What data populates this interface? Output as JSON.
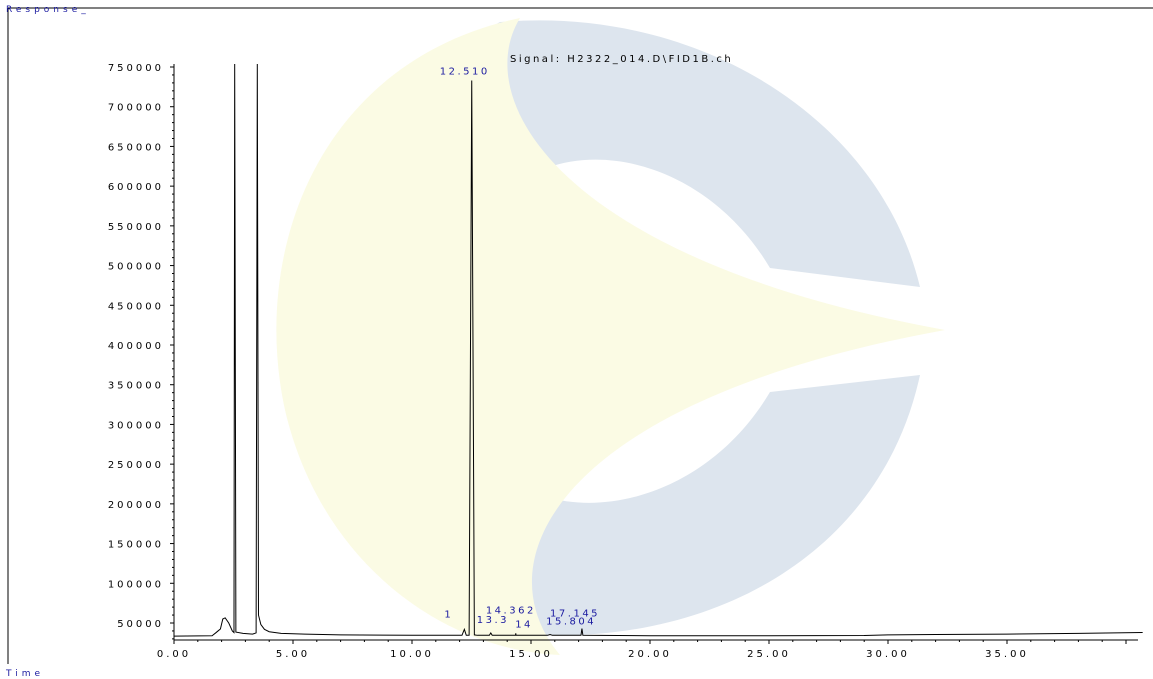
{
  "chart_data": {
    "type": "line",
    "signal_title": "Signal: H2322_014.D\\FID1B.ch",
    "ylabel": "Response_",
    "xlabel": "Time",
    "xlim": [
      0,
      40.7
    ],
    "ylim": [
      30000,
      760000
    ],
    "x_ticks": [
      0,
      5,
      10,
      15,
      20,
      25,
      30,
      35
    ],
    "x_tick_labels": [
      "0.00",
      "5.00",
      "10.00",
      "15.00",
      "20.00",
      "25.00",
      "30.00",
      "35.00"
    ],
    "y_ticks": [
      50000,
      100000,
      150000,
      200000,
      250000,
      300000,
      350000,
      400000,
      450000,
      500000,
      550000,
      600000,
      650000,
      700000,
      750000
    ],
    "y_tick_labels": [
      "50000",
      "100000",
      "150000",
      "200000",
      "250000",
      "300000",
      "350000",
      "400000",
      "450000",
      "500000",
      "550000",
      "600000",
      "650000",
      "700000",
      "750000"
    ],
    "grid": false,
    "colors": {
      "trace": "#000000",
      "labels": "#1a1aa0",
      "axis": "#000000",
      "watermark_blue": "#dde5ee",
      "watermark_yellow": "#fbfbe4"
    },
    "series": [
      {
        "points": [
          [
            0,
            33500
          ],
          [
            1.6,
            34000
          ],
          [
            1.75,
            37500
          ],
          [
            1.85,
            40000
          ],
          [
            1.95,
            42500
          ],
          [
            2.05,
            55000
          ],
          [
            2.15,
            56500
          ],
          [
            2.3,
            50000
          ],
          [
            2.45,
            40000
          ],
          [
            2.52,
            38000
          ],
          [
            2.55,
            800000
          ],
          [
            2.6,
            38500
          ],
          [
            2.9,
            37000
          ],
          [
            3.3,
            36000
          ],
          [
            3.45,
            37500
          ],
          [
            3.5,
            800000
          ],
          [
            3.55,
            60000
          ],
          [
            3.65,
            48000
          ],
          [
            3.8,
            42000
          ],
          [
            4.0,
            39000
          ],
          [
            4.5,
            37000
          ],
          [
            5.5,
            36000
          ],
          [
            7.0,
            35000
          ],
          [
            10.0,
            34500
          ],
          [
            12.1,
            34500
          ],
          [
            12.2,
            42000
          ],
          [
            12.28,
            34500
          ],
          [
            12.4,
            34500
          ],
          [
            12.51,
            733000
          ],
          [
            12.62,
            35000
          ],
          [
            12.75,
            34500
          ],
          [
            13.25,
            34500
          ],
          [
            13.31,
            37500
          ],
          [
            13.37,
            34500
          ],
          [
            14.0,
            34500
          ],
          [
            14.35,
            34500
          ],
          [
            14.36,
            37000
          ],
          [
            14.37,
            34500
          ],
          [
            15.7,
            34500
          ],
          [
            15.8,
            35500
          ],
          [
            15.9,
            34500
          ],
          [
            17.1,
            34500
          ],
          [
            17.14,
            43000
          ],
          [
            17.18,
            34500
          ],
          [
            20.0,
            34000
          ],
          [
            25.0,
            34000
          ],
          [
            29.0,
            34200
          ],
          [
            30.0,
            35000
          ],
          [
            32.0,
            35500
          ],
          [
            35.0,
            36000
          ],
          [
            38.0,
            37000
          ],
          [
            40.7,
            38000
          ]
        ]
      }
    ],
    "peaks": [
      {
        "label": "12.510",
        "x": 12.51,
        "y": 733000
      },
      {
        "label": "14.362",
        "x": 14.362,
        "y": 37000
      },
      {
        "label": "17.145",
        "x": 17.145,
        "y": 43000
      },
      {
        "label": "1",
        "x": 12.2,
        "y": 42000
      },
      {
        "label": "13.3",
        "x": 13.31,
        "y": 37500
      },
      {
        "label": "14",
        "x": 14.0,
        "y": 34500
      },
      {
        "label": "15.804",
        "x": 15.804,
        "y": 35500
      }
    ]
  }
}
